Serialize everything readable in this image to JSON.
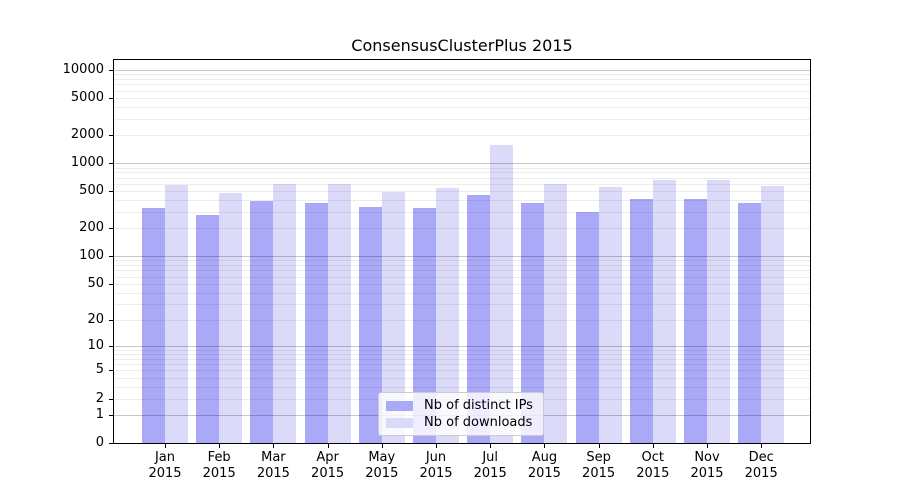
{
  "chart_data": {
    "type": "bar",
    "title": "ConsensusClusterPlus 2015",
    "categories": [
      "Jan",
      "Feb",
      "Mar",
      "Apr",
      "May",
      "Jun",
      "Jul",
      "Aug",
      "Sep",
      "Oct",
      "Nov",
      "Dec"
    ],
    "x_tick_second_line": "2015",
    "series": [
      {
        "name": "Nb of distinct IPs",
        "color": "#a9a9f7",
        "values": [
          330,
          280,
          390,
          375,
          340,
          330,
          450,
          375,
          300,
          410,
          410,
          370
        ]
      },
      {
        "name": "Nb of downloads",
        "color": "#dbdbf9",
        "values": [
          590,
          480,
          600,
          600,
          490,
          540,
          1550,
          595,
          550,
          660,
          660,
          575
        ]
      }
    ],
    "yscale": "log1p",
    "y_tick_labels": [
      0,
      1,
      2,
      5,
      10,
      20,
      50,
      100,
      200,
      500,
      1000,
      2000,
      5000,
      10000
    ],
    "ylim": [
      0,
      12800
    ],
    "xlabel": "",
    "ylabel": "",
    "grid": "on",
    "legend_position": "bottom-center"
  }
}
